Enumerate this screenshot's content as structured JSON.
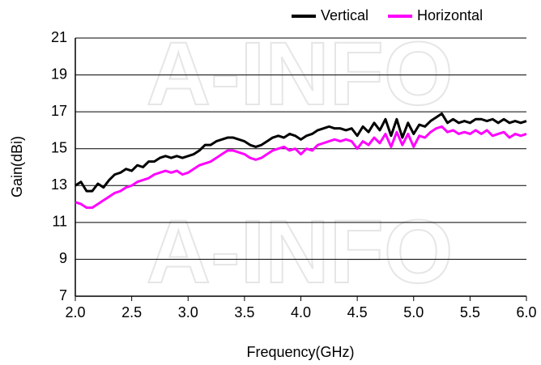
{
  "chart_data": {
    "type": "line",
    "watermark": "A-INFO",
    "xlabel": "Frequency(GHz)",
    "ylabel": "Gain(dBi)",
    "xlim": [
      2.0,
      6.0
    ],
    "ylim": [
      7,
      21
    ],
    "xticks": [
      {
        "value": 2.0,
        "label": "2.0"
      },
      {
        "value": 2.5,
        "label": "2.5"
      },
      {
        "value": 3.0,
        "label": "3.0"
      },
      {
        "value": 3.5,
        "label": "3.5"
      },
      {
        "value": 4.0,
        "label": "4.0"
      },
      {
        "value": 4.5,
        "label": "4.5"
      },
      {
        "value": 5.0,
        "label": "5.0"
      },
      {
        "value": 5.5,
        "label": "5.5"
      },
      {
        "value": 6.0,
        "label": "6.0"
      }
    ],
    "yticks": [
      7,
      9,
      11,
      13,
      15,
      17,
      19,
      21
    ],
    "grid": true,
    "legend": "top-right",
    "x": [
      2.0,
      2.05,
      2.1,
      2.15,
      2.2,
      2.25,
      2.3,
      2.35,
      2.4,
      2.45,
      2.5,
      2.55,
      2.6,
      2.65,
      2.7,
      2.75,
      2.8,
      2.85,
      2.9,
      2.95,
      3.0,
      3.05,
      3.1,
      3.15,
      3.2,
      3.25,
      3.3,
      3.35,
      3.4,
      3.45,
      3.5,
      3.55,
      3.6,
      3.65,
      3.7,
      3.75,
      3.8,
      3.85,
      3.9,
      3.95,
      4.0,
      4.05,
      4.1,
      4.15,
      4.2,
      4.25,
      4.3,
      4.35,
      4.4,
      4.45,
      4.5,
      4.55,
      4.6,
      4.65,
      4.7,
      4.75,
      4.8,
      4.85,
      4.9,
      4.95,
      5.0,
      5.05,
      5.1,
      5.15,
      5.2,
      5.25,
      5.3,
      5.35,
      5.4,
      5.45,
      5.5,
      5.55,
      5.6,
      5.65,
      5.7,
      5.75,
      5.8,
      5.85,
      5.9,
      5.95,
      6.0
    ],
    "series": [
      {
        "name": "Vertical",
        "color": "#000000",
        "values": [
          13.0,
          13.2,
          12.7,
          12.7,
          13.1,
          12.9,
          13.3,
          13.6,
          13.7,
          13.9,
          13.8,
          14.1,
          14.0,
          14.3,
          14.3,
          14.5,
          14.6,
          14.5,
          14.6,
          14.5,
          14.6,
          14.7,
          14.9,
          15.2,
          15.2,
          15.4,
          15.5,
          15.6,
          15.6,
          15.5,
          15.4,
          15.2,
          15.1,
          15.2,
          15.4,
          15.6,
          15.7,
          15.6,
          15.8,
          15.7,
          15.5,
          15.7,
          15.8,
          16.0,
          16.1,
          16.2,
          16.1,
          16.1,
          16.0,
          16.1,
          15.7,
          16.2,
          15.9,
          16.4,
          16.0,
          16.6,
          15.7,
          16.6,
          15.6,
          16.4,
          15.8,
          16.3,
          16.2,
          16.5,
          16.7,
          16.9,
          16.4,
          16.6,
          16.4,
          16.5,
          16.4,
          16.6,
          16.6,
          16.5,
          16.6,
          16.4,
          16.6,
          16.4,
          16.5,
          16.4,
          16.5
        ]
      },
      {
        "name": "Horizontal",
        "color": "#ff00ff",
        "values": [
          12.1,
          12.0,
          11.8,
          11.8,
          12.0,
          12.2,
          12.4,
          12.6,
          12.7,
          12.9,
          13.0,
          13.2,
          13.3,
          13.4,
          13.6,
          13.7,
          13.8,
          13.7,
          13.8,
          13.6,
          13.7,
          13.9,
          14.1,
          14.2,
          14.3,
          14.5,
          14.7,
          14.9,
          14.9,
          14.8,
          14.7,
          14.5,
          14.4,
          14.5,
          14.7,
          14.9,
          15.0,
          15.1,
          14.9,
          15.0,
          14.7,
          15.0,
          14.9,
          15.2,
          15.3,
          15.4,
          15.5,
          15.4,
          15.5,
          15.4,
          15.0,
          15.4,
          15.2,
          15.6,
          15.3,
          15.8,
          15.1,
          15.9,
          15.2,
          15.8,
          15.1,
          15.7,
          15.6,
          15.9,
          16.1,
          16.2,
          15.9,
          16.0,
          15.8,
          15.9,
          15.8,
          16.0,
          15.8,
          16.0,
          15.7,
          15.8,
          15.9,
          15.6,
          15.8,
          15.7,
          15.8
        ]
      }
    ]
  }
}
